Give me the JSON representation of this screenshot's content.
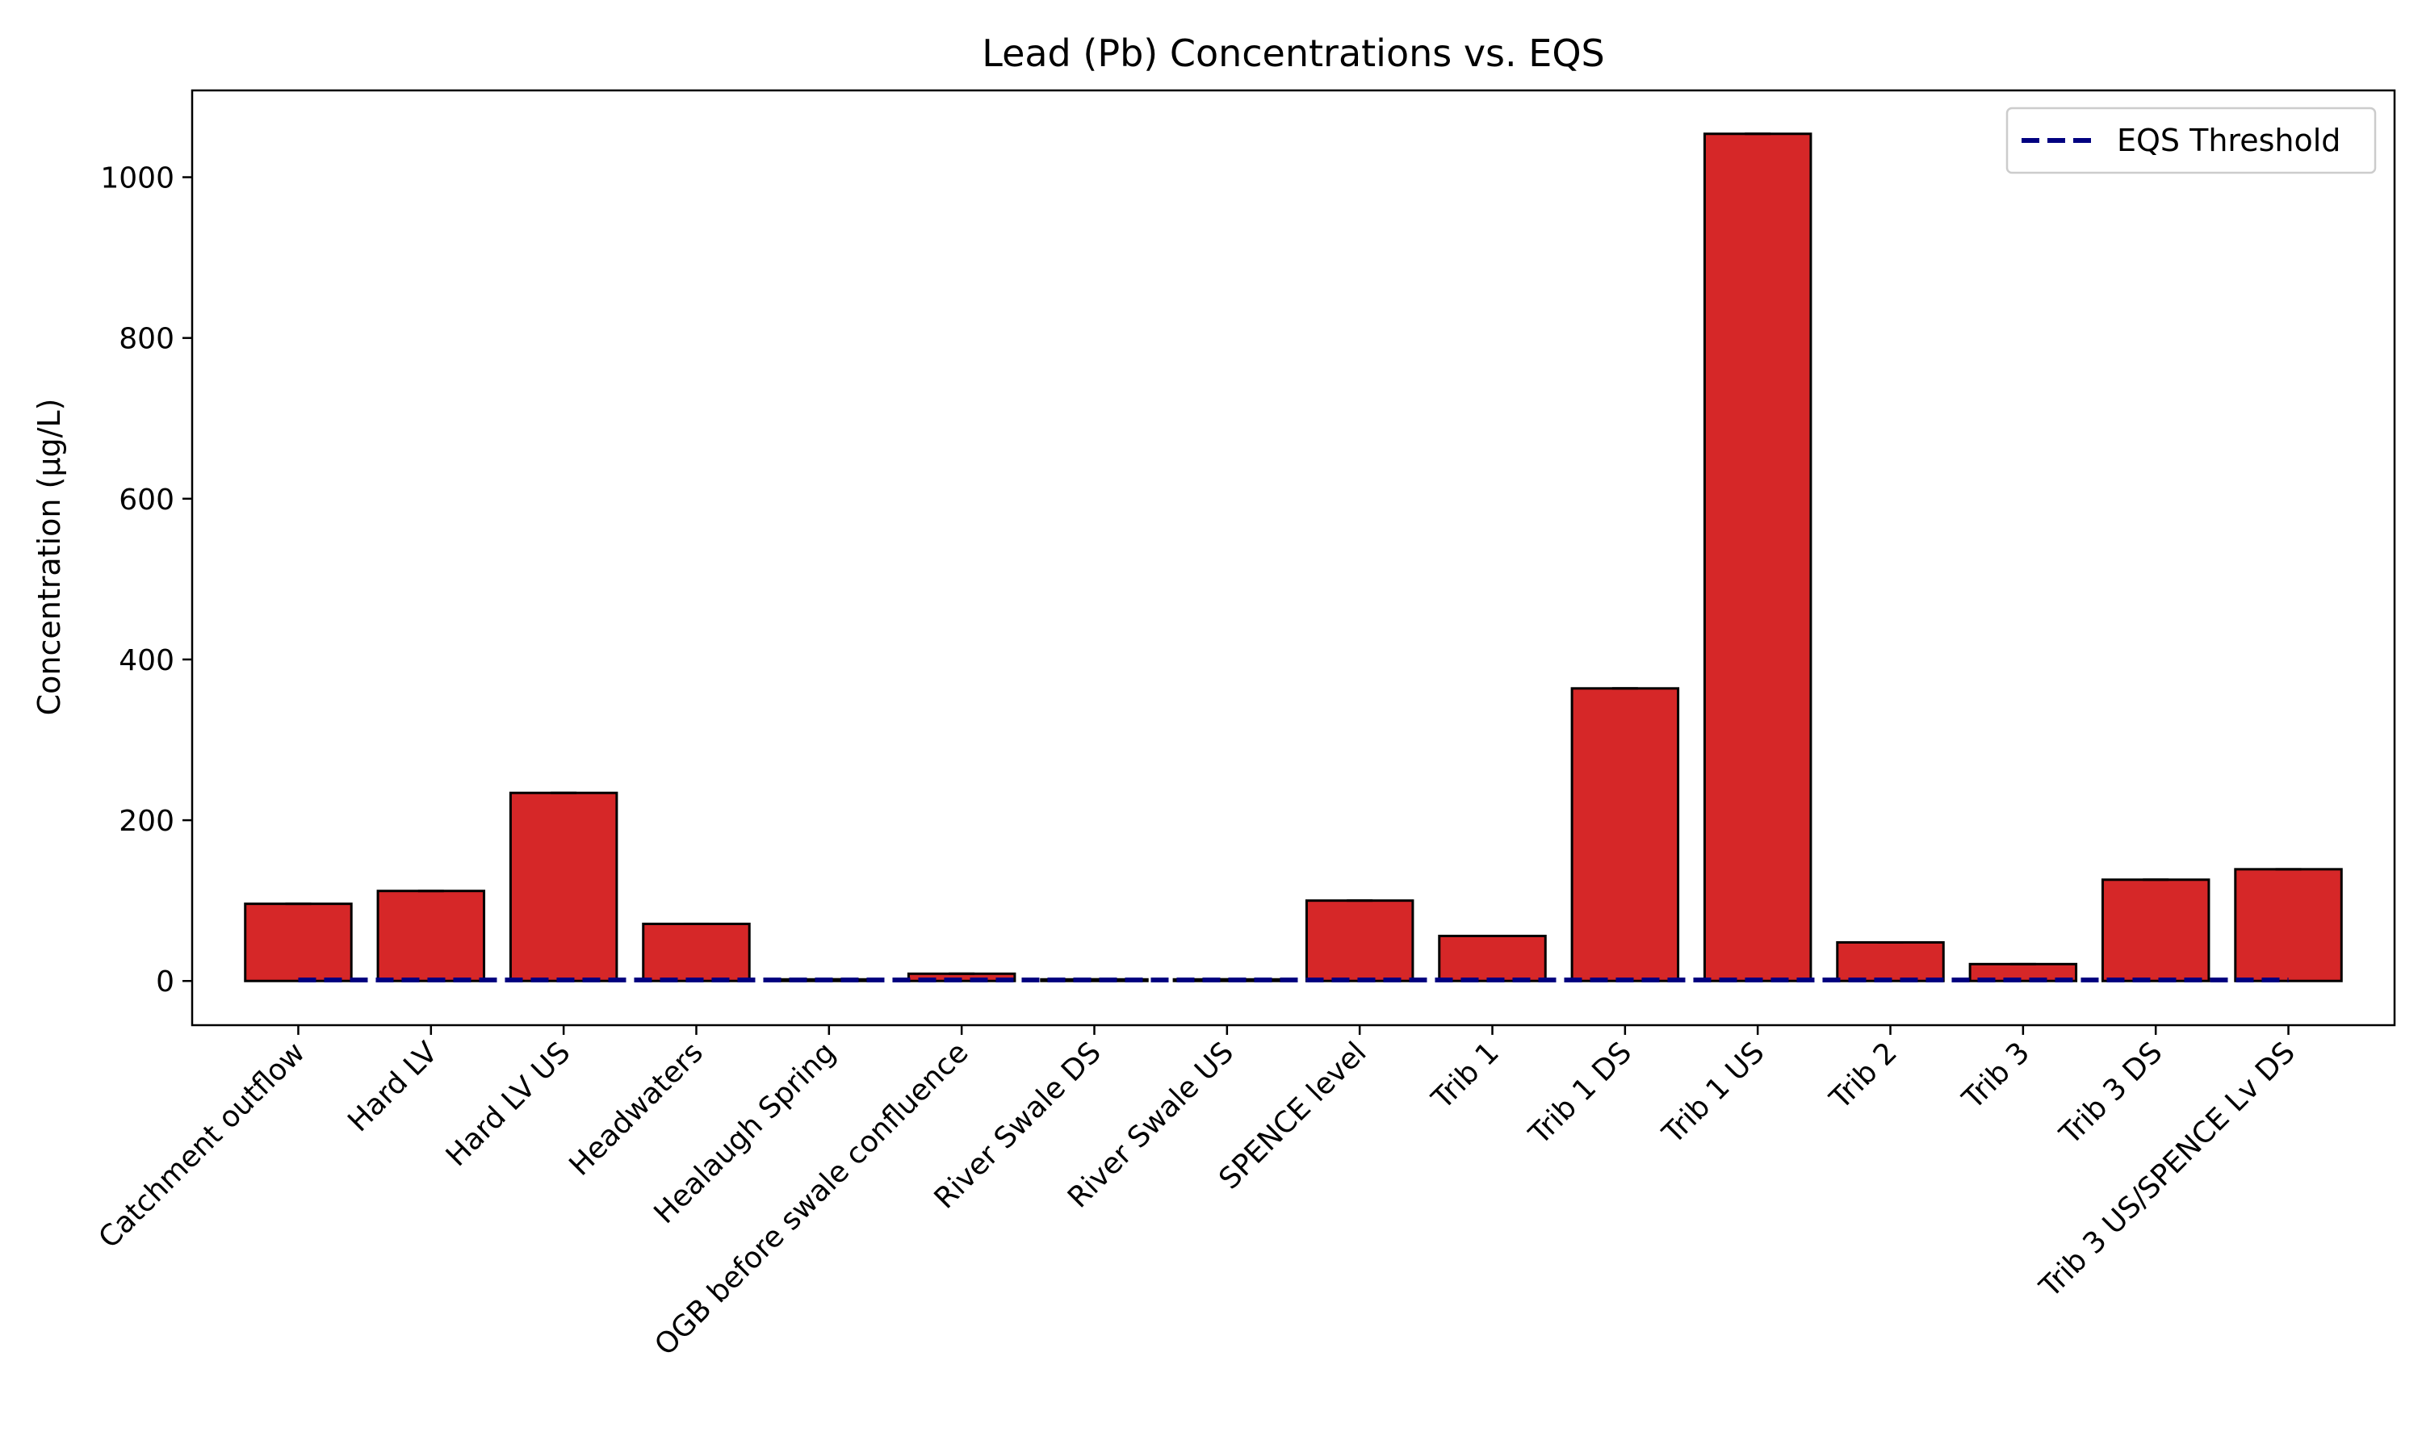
{
  "chart_data": {
    "type": "bar",
    "title": "Lead (Pb) Concentrations vs. EQS",
    "xlabel": "",
    "ylabel": "Concentration (µg/L)",
    "ylim": [
      -55,
      1108
    ],
    "yticks": [
      0,
      200,
      400,
      600,
      800,
      1000
    ],
    "grid": false,
    "legend": {
      "position": "top-right",
      "entries": [
        "EQS Threshold"
      ]
    },
    "categories": [
      "Catchment outflow",
      "Hard LV",
      "Hard LV US",
      "Headwaters",
      "Healaugh Spring",
      "OGB before swale confluence",
      "River Swale DS",
      "River Swale US",
      "SPENCE level",
      "Trib 1",
      "Trib 1 DS",
      "Trib 1 US",
      "Trib 2",
      "Trib 3",
      "Trib 3 DS",
      "Trib 3 US/SPENCE Lv DS"
    ],
    "values": [
      96,
      112,
      234,
      71,
      2,
      9,
      2,
      2,
      100,
      56,
      364,
      1054,
      48,
      21,
      126,
      139
    ],
    "eqs_threshold": 1.2,
    "colors": {
      "bar": "#d62728",
      "bar_edge": "#000000",
      "eqs_line": "#000080",
      "errorbar": "#000000"
    }
  }
}
